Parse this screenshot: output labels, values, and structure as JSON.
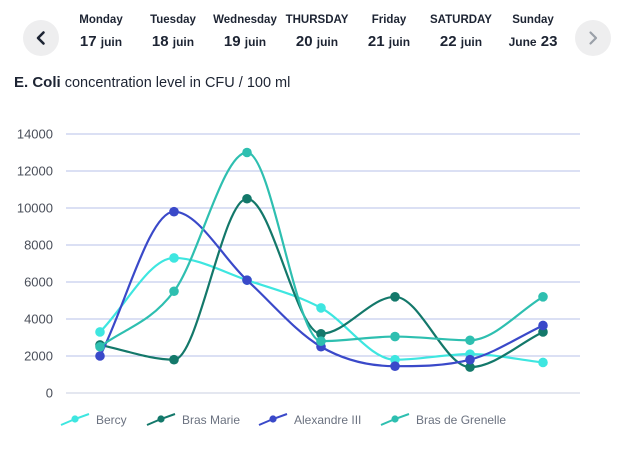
{
  "nav": {
    "prev_icon": "chevron-left-icon",
    "next_icon": "chevron-right-icon"
  },
  "days": [
    {
      "name": "Monday",
      "num": "17",
      "month": "juin",
      "month_first": false
    },
    {
      "name": "Tuesday",
      "num": "18",
      "month": "juin",
      "month_first": false
    },
    {
      "name": "Wednesday",
      "num": "19",
      "month": "juin",
      "month_first": false
    },
    {
      "name": "THURSDAY",
      "num": "20",
      "month": "juin",
      "month_first": false
    },
    {
      "name": "Friday",
      "num": "21",
      "month": "juin",
      "month_first": false
    },
    {
      "name": "SATURDAY",
      "num": "22",
      "month": "juin",
      "month_first": false
    },
    {
      "name": "Sunday",
      "num": "23",
      "month": "June",
      "month_first": true
    }
  ],
  "title": {
    "strong": "E. Coli",
    "rest": " concentration level in CFU / 100 ml"
  },
  "chart_data": {
    "type": "line",
    "title": "E. Coli concentration level in CFU / 100 ml",
    "xlabel": "",
    "ylabel": "",
    "categories": [
      "17 juin",
      "18 juin",
      "19 juin",
      "20 juin",
      "21 juin",
      "22 juin",
      "June 23"
    ],
    "ylim": [
      0,
      14000
    ],
    "yticks": [
      0,
      2000,
      4000,
      6000,
      8000,
      10000,
      12000,
      14000
    ],
    "ytick_labels": [
      "0",
      "2000",
      "4000",
      "6000",
      "8000",
      "10000",
      "12000",
      "14000"
    ],
    "grid": true,
    "legend": "bottom",
    "series": [
      {
        "name": "Bercy",
        "color": "#3ee6e0",
        "values": [
          3300,
          7300,
          6100,
          4600,
          1800,
          2100,
          1650
        ]
      },
      {
        "name": "Bras Marie",
        "color": "#13786a",
        "values": [
          2600,
          1800,
          10500,
          3200,
          5200,
          1400,
          3300
        ]
      },
      {
        "name": "Alexandre III",
        "color": "#3a49c9",
        "values": [
          2000,
          9800,
          6100,
          2500,
          1450,
          1800,
          3650
        ]
      },
      {
        "name": "Bras de Grenelle",
        "color": "#2ebfb0",
        "values": [
          2500,
          5500,
          13000,
          2800,
          3050,
          2850,
          5200
        ]
      }
    ]
  }
}
